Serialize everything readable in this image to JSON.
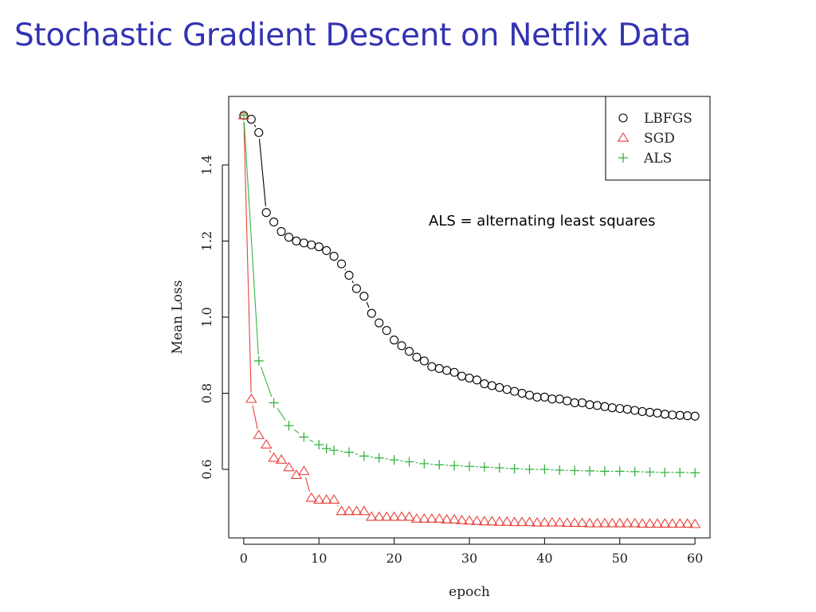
{
  "slide": {
    "title": "Stochastic Gradient Descent on Netflix Data"
  },
  "chart_data": {
    "type": "scatter",
    "title": "",
    "xlabel": "epoch",
    "ylabel": "Mean Loss",
    "xlim": [
      -2,
      62
    ],
    "ylim": [
      0.42,
      1.58
    ],
    "xticks": [
      0,
      10,
      20,
      30,
      40,
      50,
      60
    ],
    "yticks": [
      0.6,
      0.8,
      1.0,
      1.2,
      1.4
    ],
    "ytick_labels": [
      "0.6",
      "0.8",
      "1.0",
      "1.2",
      "1.4"
    ],
    "legend_position": "top-right",
    "annotation": "ALS = alternating least squares",
    "x": [
      0,
      1,
      2,
      3,
      4,
      5,
      6,
      7,
      8,
      9,
      10,
      11,
      12,
      13,
      14,
      15,
      16,
      17,
      18,
      19,
      20,
      21,
      22,
      23,
      24,
      25,
      26,
      27,
      28,
      29,
      30,
      31,
      32,
      33,
      34,
      35,
      36,
      37,
      38,
      39,
      40,
      41,
      42,
      43,
      44,
      45,
      46,
      47,
      48,
      49,
      50,
      51,
      52,
      53,
      54,
      55,
      56,
      57,
      58,
      59,
      60
    ],
    "series": [
      {
        "name": "LBFGS",
        "marker": "circle",
        "color": "#000000",
        "values": [
          1.53,
          1.52,
          1.485,
          1.275,
          1.25,
          1.225,
          1.21,
          1.2,
          1.195,
          1.19,
          1.185,
          1.175,
          1.16,
          1.14,
          1.11,
          1.075,
          1.055,
          1.01,
          0.985,
          0.965,
          0.94,
          0.925,
          0.91,
          0.895,
          0.885,
          0.87,
          0.865,
          0.86,
          0.855,
          0.845,
          0.84,
          0.835,
          0.825,
          0.82,
          0.815,
          0.81,
          0.805,
          0.8,
          0.795,
          0.79,
          0.79,
          0.785,
          0.785,
          0.78,
          0.775,
          0.775,
          0.77,
          0.768,
          0.765,
          0.762,
          0.76,
          0.758,
          0.755,
          0.752,
          0.75,
          0.748,
          0.745,
          0.743,
          0.742,
          0.741,
          0.74
        ]
      },
      {
        "name": "SGD",
        "marker": "triangle",
        "color": "#e8413b",
        "values": [
          1.53,
          0.785,
          0.69,
          0.665,
          0.63,
          0.625,
          0.605,
          0.585,
          0.595,
          0.525,
          0.52,
          0.52,
          0.52,
          0.49,
          0.49,
          0.49,
          0.49,
          0.475,
          0.475,
          0.475,
          0.475,
          0.475,
          0.475,
          0.47,
          0.47,
          0.47,
          0.47,
          0.468,
          0.468,
          0.466,
          0.465,
          0.464,
          0.463,
          0.463,
          0.462,
          0.462,
          0.461,
          0.461,
          0.461,
          0.46,
          0.46,
          0.46,
          0.46,
          0.459,
          0.459,
          0.459,
          0.458,
          0.458,
          0.458,
          0.458,
          0.458,
          0.458,
          0.458,
          0.457,
          0.457,
          0.457,
          0.457,
          0.457,
          0.457,
          0.457,
          0.456
        ]
      },
      {
        "name": "ALS",
        "marker": "plus",
        "color": "#37b341",
        "values": [
          1.53,
          null,
          0.885,
          null,
          0.775,
          null,
          0.715,
          null,
          0.685,
          null,
          0.665,
          0.655,
          0.65,
          null,
          0.645,
          null,
          0.635,
          null,
          0.63,
          null,
          0.625,
          null,
          0.62,
          null,
          0.615,
          null,
          0.612,
          null,
          0.61,
          null,
          0.608,
          null,
          0.606,
          null,
          0.604,
          null,
          0.602,
          null,
          0.6,
          null,
          0.6,
          null,
          0.598,
          null,
          0.597,
          null,
          0.596,
          null,
          0.595,
          null,
          0.595,
          null,
          0.594,
          null,
          0.593,
          null,
          0.592,
          null,
          0.592,
          null,
          0.591
        ]
      }
    ]
  }
}
